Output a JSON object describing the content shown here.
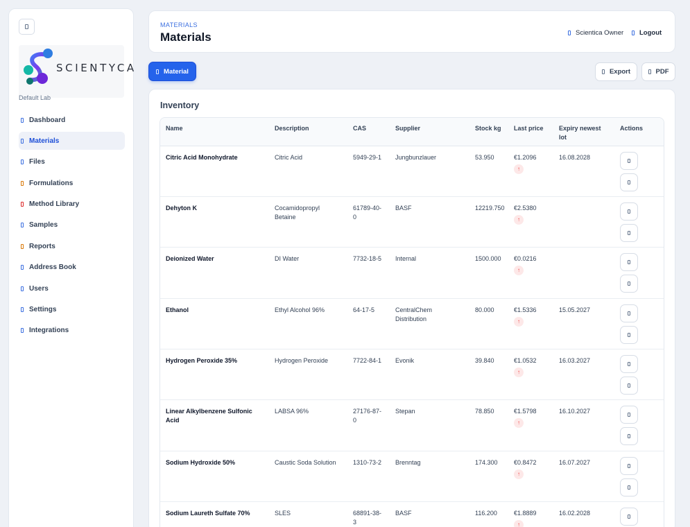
{
  "sidebar": {
    "brand": "SCIENTYCA",
    "lab": "Default Lab",
    "items": [
      {
        "label": "Dashboard",
        "icon": "dashboard-icon"
      },
      {
        "label": "Materials",
        "icon": "materials-icon",
        "active": true
      },
      {
        "label": "Files",
        "icon": "files-icon"
      },
      {
        "label": "Formulations",
        "icon": "formulations-icon"
      },
      {
        "label": "Method Library",
        "icon": "method-library-icon"
      },
      {
        "label": "Samples",
        "icon": "samples-icon"
      },
      {
        "label": "Reports",
        "icon": "reports-icon"
      },
      {
        "label": "Address Book",
        "icon": "address-book-icon"
      },
      {
        "label": "Users",
        "icon": "users-icon"
      },
      {
        "label": "Settings",
        "icon": "settings-icon"
      },
      {
        "label": "Integrations",
        "icon": "integrations-icon"
      }
    ]
  },
  "header": {
    "breadcrumb": "MATERIALS",
    "title": "Materials",
    "user": "Scientica Owner",
    "logout": "Logout"
  },
  "toolbar": {
    "add_label": "Material",
    "export_label": "Export",
    "pdf_label": "PDF"
  },
  "inventory": {
    "title": "Inventory",
    "columns": {
      "name": "Name",
      "description": "Description",
      "cas": "CAS",
      "supplier": "Supplier",
      "stock": "Stock kg",
      "price": "Last price",
      "expiry": "Expiry newest lot",
      "actions": "Actions"
    },
    "trend_glyph": "↑",
    "rows": [
      {
        "name": "Citric Acid Monohydrate",
        "description": "Citric Acid",
        "cas": "5949-29-1",
        "supplier": "Jungbunzlauer",
        "stock": "53.950",
        "price": "€1.2096",
        "expiry": "16.08.2028"
      },
      {
        "name": "Dehyton K",
        "description": "Cocamidopropyl Betaine",
        "cas": "61789-40-0",
        "supplier": "BASF",
        "stock": "12219.750",
        "price": "€2.5380",
        "expiry": ""
      },
      {
        "name": "Deionized Water",
        "description": "DI Water",
        "cas": "7732-18-5",
        "supplier": "Internal",
        "stock": "1500.000",
        "price": "€0.0216",
        "expiry": ""
      },
      {
        "name": "Ethanol",
        "description": "Ethyl Alcohol 96%",
        "cas": "64-17-5",
        "supplier": "CentralChem Distribution",
        "stock": "80.000",
        "price": "€1.5336",
        "expiry": "15.05.2027"
      },
      {
        "name": "Hydrogen Peroxide 35%",
        "description": "Hydrogen Peroxide",
        "cas": "7722-84-1",
        "supplier": "Evonik",
        "stock": "39.840",
        "price": "€1.0532",
        "expiry": "16.03.2027"
      },
      {
        "name": "Linear Alkylbenzene Sulfonic Acid",
        "description": "LABSA 96%",
        "cas": "27176-87-0",
        "supplier": "Stepan",
        "stock": "78.850",
        "price": "€1.5798",
        "expiry": "16.10.2027"
      },
      {
        "name": "Sodium Hydroxide 50%",
        "description": "Caustic Soda Solution",
        "cas": "1310-73-2",
        "supplier": "Brenntag",
        "stock": "174.300",
        "price": "€0.8472",
        "expiry": "16.07.2027"
      },
      {
        "name": "Sodium Laureth Sulfate 70%",
        "description": "SLES",
        "cas": "68891-38-3",
        "supplier": "BASF",
        "stock": "116.200",
        "price": "€1.8889",
        "expiry": "16.02.2028"
      }
    ]
  },
  "colors": {
    "accent": "#2563eb",
    "background": "#eef1f6",
    "trend_up": "#ef4444"
  }
}
